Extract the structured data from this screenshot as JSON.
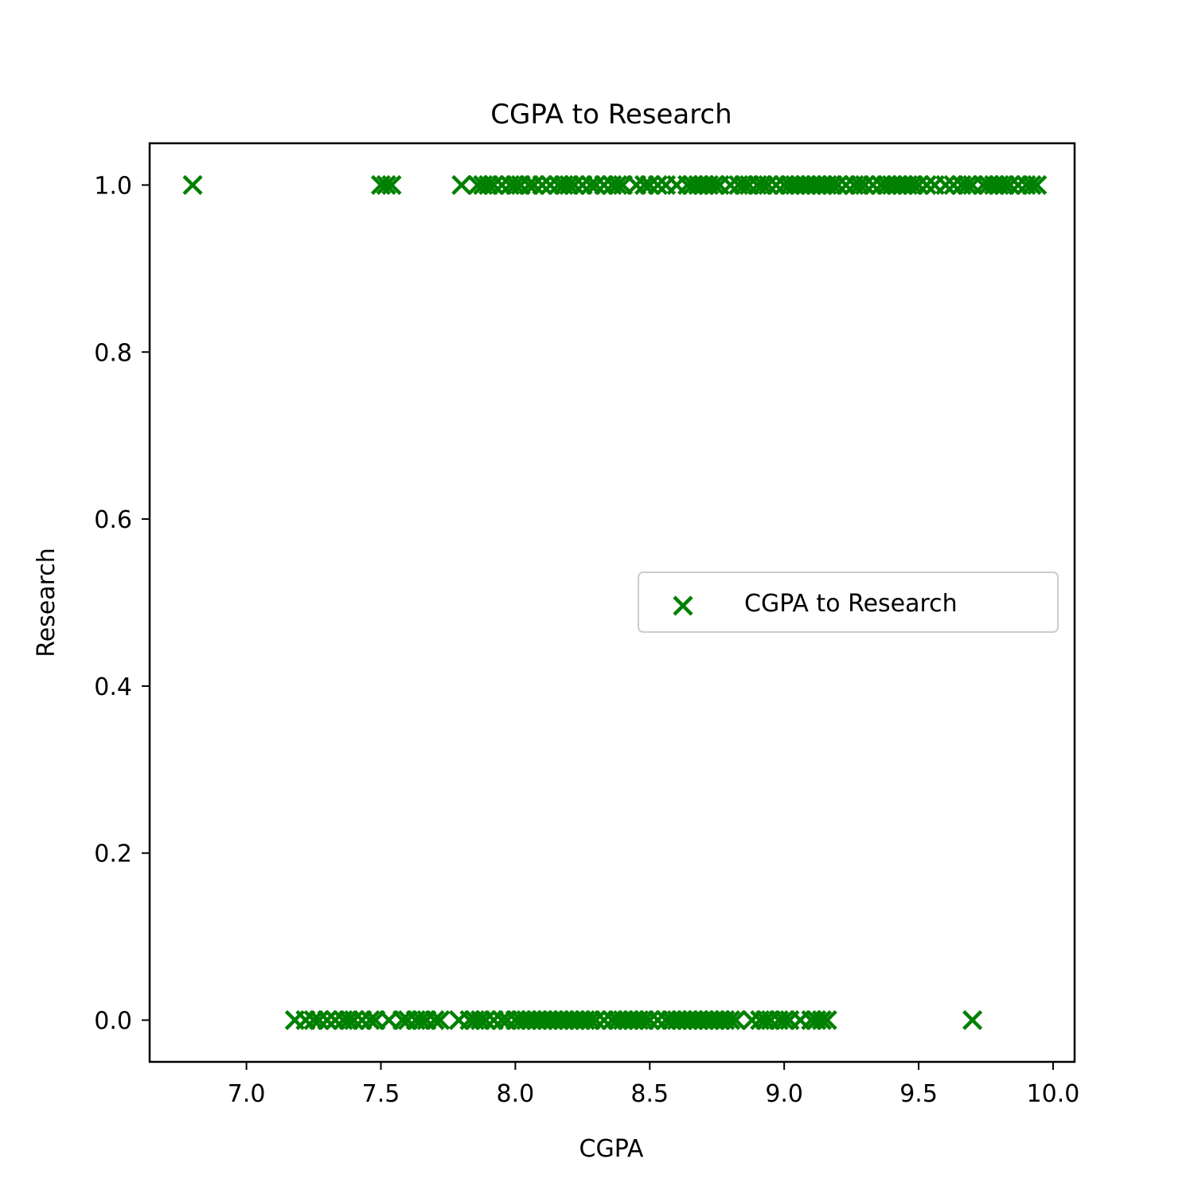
{
  "chart_data": {
    "type": "scatter",
    "title": "CGPA to Research",
    "xlabel": "CGPA",
    "ylabel": "Research",
    "xlim": [
      6.64,
      10.08
    ],
    "ylim": [
      -0.05,
      1.05
    ],
    "x_ticks": [
      7.0,
      7.5,
      8.0,
      8.5,
      9.0,
      9.5,
      10.0
    ],
    "x_tick_labels": [
      "7.0",
      "7.5",
      "8.0",
      "8.5",
      "9.0",
      "9.5",
      "10.0"
    ],
    "y_ticks": [
      0.0,
      0.2,
      0.4,
      0.6,
      0.8,
      1.0
    ],
    "y_tick_labels": [
      "0.0",
      "0.2",
      "0.4",
      "0.6",
      "0.8",
      "1.0"
    ],
    "grid": false,
    "legend_position": "center-right",
    "marker": "x",
    "color": "#008000",
    "series": [
      {
        "name": "CGPA to Research",
        "color": "#008000",
        "marker": "x",
        "points": [
          {
            "x": 6.8,
            "y": 1
          },
          {
            "x": 7.5,
            "y": 1
          },
          {
            "x": 7.52,
            "y": 1
          },
          {
            "x": 7.54,
            "y": 1
          },
          {
            "x": 7.8,
            "y": 1
          },
          {
            "x": 7.86,
            "y": 1
          },
          {
            "x": 7.88,
            "y": 1
          },
          {
            "x": 7.9,
            "y": 1
          },
          {
            "x": 7.92,
            "y": 1
          },
          {
            "x": 7.95,
            "y": 1
          },
          {
            "x": 7.98,
            "y": 1
          },
          {
            "x": 8.0,
            "y": 1
          },
          {
            "x": 8.02,
            "y": 1
          },
          {
            "x": 8.05,
            "y": 1
          },
          {
            "x": 8.07,
            "y": 1
          },
          {
            "x": 8.1,
            "y": 1
          },
          {
            "x": 8.13,
            "y": 1
          },
          {
            "x": 8.16,
            "y": 1
          },
          {
            "x": 8.18,
            "y": 1
          },
          {
            "x": 8.2,
            "y": 1
          },
          {
            "x": 8.22,
            "y": 1
          },
          {
            "x": 8.25,
            "y": 1
          },
          {
            "x": 8.28,
            "y": 1
          },
          {
            "x": 8.3,
            "y": 1
          },
          {
            "x": 8.33,
            "y": 1
          },
          {
            "x": 8.36,
            "y": 1
          },
          {
            "x": 8.38,
            "y": 1
          },
          {
            "x": 8.4,
            "y": 1
          },
          {
            "x": 8.45,
            "y": 1
          },
          {
            "x": 8.48,
            "y": 1
          },
          {
            "x": 8.5,
            "y": 1
          },
          {
            "x": 8.53,
            "y": 1
          },
          {
            "x": 8.56,
            "y": 1
          },
          {
            "x": 8.6,
            "y": 1
          },
          {
            "x": 8.64,
            "y": 1
          },
          {
            "x": 8.66,
            "y": 1
          },
          {
            "x": 8.68,
            "y": 1
          },
          {
            "x": 8.7,
            "y": 1
          },
          {
            "x": 8.72,
            "y": 1
          },
          {
            "x": 8.74,
            "y": 1
          },
          {
            "x": 8.76,
            "y": 1
          },
          {
            "x": 8.8,
            "y": 1
          },
          {
            "x": 8.83,
            "y": 1
          },
          {
            "x": 8.85,
            "y": 1
          },
          {
            "x": 8.87,
            "y": 1
          },
          {
            "x": 8.9,
            "y": 1
          },
          {
            "x": 8.92,
            "y": 1
          },
          {
            "x": 8.94,
            "y": 1
          },
          {
            "x": 8.97,
            "y": 1
          },
          {
            "x": 9.0,
            "y": 1
          },
          {
            "x": 9.02,
            "y": 1
          },
          {
            "x": 9.04,
            "y": 1
          },
          {
            "x": 9.06,
            "y": 1
          },
          {
            "x": 9.08,
            "y": 1
          },
          {
            "x": 9.1,
            "y": 1
          },
          {
            "x": 9.12,
            "y": 1
          },
          {
            "x": 9.14,
            "y": 1
          },
          {
            "x": 9.16,
            "y": 1
          },
          {
            "x": 9.18,
            "y": 1
          },
          {
            "x": 9.2,
            "y": 1
          },
          {
            "x": 9.23,
            "y": 1
          },
          {
            "x": 9.26,
            "y": 1
          },
          {
            "x": 9.28,
            "y": 1
          },
          {
            "x": 9.3,
            "y": 1
          },
          {
            "x": 9.33,
            "y": 1
          },
          {
            "x": 9.36,
            "y": 1
          },
          {
            "x": 9.38,
            "y": 1
          },
          {
            "x": 9.4,
            "y": 1
          },
          {
            "x": 9.42,
            "y": 1
          },
          {
            "x": 9.44,
            "y": 1
          },
          {
            "x": 9.46,
            "y": 1
          },
          {
            "x": 9.48,
            "y": 1
          },
          {
            "x": 9.5,
            "y": 1
          },
          {
            "x": 9.53,
            "y": 1
          },
          {
            "x": 9.56,
            "y": 1
          },
          {
            "x": 9.6,
            "y": 1
          },
          {
            "x": 9.63,
            "y": 1
          },
          {
            "x": 9.66,
            "y": 1
          },
          {
            "x": 9.68,
            "y": 1
          },
          {
            "x": 9.7,
            "y": 1
          },
          {
            "x": 9.74,
            "y": 1
          },
          {
            "x": 9.76,
            "y": 1
          },
          {
            "x": 9.78,
            "y": 1
          },
          {
            "x": 9.8,
            "y": 1
          },
          {
            "x": 9.82,
            "y": 1
          },
          {
            "x": 9.84,
            "y": 1
          },
          {
            "x": 9.87,
            "y": 1
          },
          {
            "x": 9.9,
            "y": 1
          },
          {
            "x": 9.92,
            "y": 1
          },
          {
            "x": 9.94,
            "y": 1
          },
          {
            "x": 7.18,
            "y": 0
          },
          {
            "x": 7.22,
            "y": 0
          },
          {
            "x": 7.25,
            "y": 0
          },
          {
            "x": 7.27,
            "y": 0
          },
          {
            "x": 7.3,
            "y": 0
          },
          {
            "x": 7.33,
            "y": 0
          },
          {
            "x": 7.36,
            "y": 0
          },
          {
            "x": 7.38,
            "y": 0
          },
          {
            "x": 7.4,
            "y": 0
          },
          {
            "x": 7.43,
            "y": 0
          },
          {
            "x": 7.46,
            "y": 0
          },
          {
            "x": 7.48,
            "y": 0
          },
          {
            "x": 7.53,
            "y": 0
          },
          {
            "x": 7.58,
            "y": 0
          },
          {
            "x": 7.6,
            "y": 0
          },
          {
            "x": 7.63,
            "y": 0
          },
          {
            "x": 7.65,
            "y": 0
          },
          {
            "x": 7.67,
            "y": 0
          },
          {
            "x": 7.7,
            "y": 0
          },
          {
            "x": 7.72,
            "y": 0
          },
          {
            "x": 7.79,
            "y": 0
          },
          {
            "x": 7.83,
            "y": 0
          },
          {
            "x": 7.85,
            "y": 0
          },
          {
            "x": 7.87,
            "y": 0
          },
          {
            "x": 7.89,
            "y": 0
          },
          {
            "x": 7.92,
            "y": 0
          },
          {
            "x": 7.95,
            "y": 0
          },
          {
            "x": 7.97,
            "y": 0
          },
          {
            "x": 8.0,
            "y": 0
          },
          {
            "x": 8.02,
            "y": 0
          },
          {
            "x": 8.04,
            "y": 0
          },
          {
            "x": 8.06,
            "y": 0
          },
          {
            "x": 8.08,
            "y": 0
          },
          {
            "x": 8.1,
            "y": 0
          },
          {
            "x": 8.12,
            "y": 0
          },
          {
            "x": 8.14,
            "y": 0
          },
          {
            "x": 8.16,
            "y": 0
          },
          {
            "x": 8.18,
            "y": 0
          },
          {
            "x": 8.2,
            "y": 0
          },
          {
            "x": 8.22,
            "y": 0
          },
          {
            "x": 8.24,
            "y": 0
          },
          {
            "x": 8.26,
            "y": 0
          },
          {
            "x": 8.28,
            "y": 0
          },
          {
            "x": 8.3,
            "y": 0
          },
          {
            "x": 8.33,
            "y": 0
          },
          {
            "x": 8.36,
            "y": 0
          },
          {
            "x": 8.38,
            "y": 0
          },
          {
            "x": 8.4,
            "y": 0
          },
          {
            "x": 8.42,
            "y": 0
          },
          {
            "x": 8.44,
            "y": 0
          },
          {
            "x": 8.46,
            "y": 0
          },
          {
            "x": 8.48,
            "y": 0
          },
          {
            "x": 8.5,
            "y": 0
          },
          {
            "x": 8.53,
            "y": 0
          },
          {
            "x": 8.56,
            "y": 0
          },
          {
            "x": 8.58,
            "y": 0
          },
          {
            "x": 8.6,
            "y": 0
          },
          {
            "x": 8.62,
            "y": 0
          },
          {
            "x": 8.64,
            "y": 0
          },
          {
            "x": 8.66,
            "y": 0
          },
          {
            "x": 8.68,
            "y": 0
          },
          {
            "x": 8.7,
            "y": 0
          },
          {
            "x": 8.72,
            "y": 0
          },
          {
            "x": 8.74,
            "y": 0
          },
          {
            "x": 8.76,
            "y": 0
          },
          {
            "x": 8.78,
            "y": 0
          },
          {
            "x": 8.8,
            "y": 0
          },
          {
            "x": 8.82,
            "y": 0
          },
          {
            "x": 8.88,
            "y": 0
          },
          {
            "x": 8.91,
            "y": 0
          },
          {
            "x": 8.93,
            "y": 0
          },
          {
            "x": 8.95,
            "y": 0
          },
          {
            "x": 8.98,
            "y": 0
          },
          {
            "x": 9.0,
            "y": 0
          },
          {
            "x": 9.02,
            "y": 0
          },
          {
            "x": 9.06,
            "y": 0
          },
          {
            "x": 9.1,
            "y": 0
          },
          {
            "x": 9.12,
            "y": 0
          },
          {
            "x": 9.14,
            "y": 0
          },
          {
            "x": 9.16,
            "y": 0
          },
          {
            "x": 9.7,
            "y": 0
          }
        ]
      }
    ]
  }
}
